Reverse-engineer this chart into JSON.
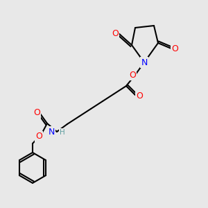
{
  "bg_color": "#e8e8e8",
  "bond_color": "#000000",
  "atom_colors": {
    "O": "#ff0000",
    "N": "#0000ff",
    "H": "#5f9ea0",
    "C": "#000000"
  },
  "font_size_atom": 9,
  "font_size_h": 7.5,
  "lw": 1.5
}
